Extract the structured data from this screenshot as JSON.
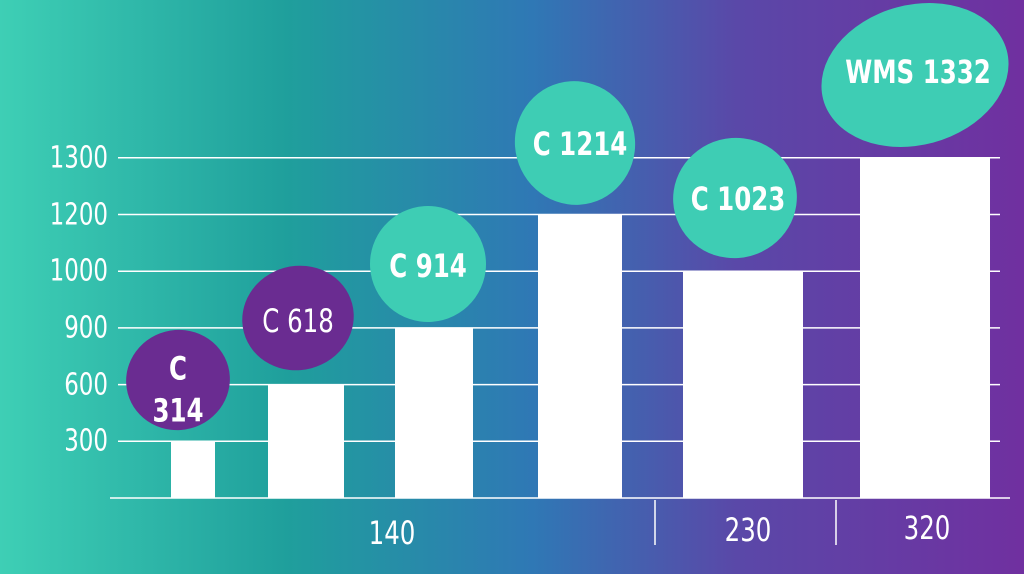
{
  "chart_data": {
    "type": "bar",
    "categories": [
      "C 314",
      "C 618",
      "C 914",
      "C 1214",
      "C 1023",
      "WMS 1332"
    ],
    "values": [
      300,
      600,
      900,
      1200,
      1000,
      1300
    ],
    "color": "#ffffff",
    "label_colors": [
      "#6a2c91",
      "#6a2c91",
      "#3ecdb4",
      "#3ecdb4",
      "#3ecdb4",
      "#3ecdb4"
    ],
    "groups": [
      "140",
      "230",
      "320"
    ],
    "ylim": [
      0,
      1300
    ],
    "yticks": [
      300,
      600,
      900,
      1000,
      1200,
      1300
    ],
    "grid": true
  }
}
